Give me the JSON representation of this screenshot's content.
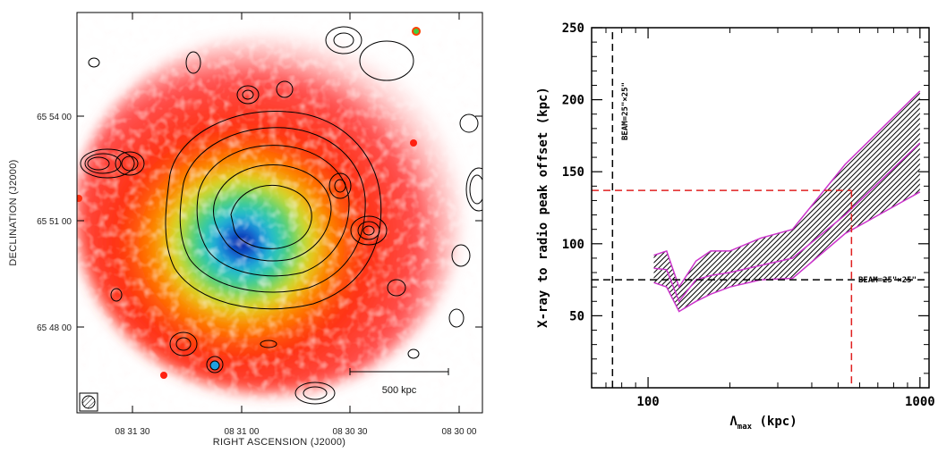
{
  "colors": {
    "contour": "#000000",
    "band_edge": "#cc33cc",
    "ref_black": "#000000",
    "ref_red": "#e02020"
  },
  "map_panel": {
    "xlabel": "RIGHT ASCENSION  (J2000)",
    "ylabel": "DECLINATION  (J2000)",
    "ra_ticks": [
      "08 31 30",
      "08 31 00",
      "08 30 30",
      "08 30 00"
    ],
    "dec_ticks": [
      "65 54 00",
      "65 51 00",
      "65 48 00"
    ],
    "scalebar_label": "500 kpc",
    "beam_icon": "hatched-beam-icon"
  },
  "chart_data": {
    "type": "area",
    "xscale": "log",
    "xlabel": "Λ",
    "xlabel_sub": "max",
    "xlabel_unit": " (kpc)",
    "ylabel": "X-ray to radio peak offset (kpc)",
    "xlim": [
      62,
      1080
    ],
    "ylim": [
      0,
      250
    ],
    "x_ticks": [
      {
        "v": 100,
        "label": "100"
      },
      {
        "v": 1000,
        "label": "1000"
      }
    ],
    "y_ticks": [
      {
        "v": 50,
        "label": "50"
      },
      {
        "v": 100,
        "label": "100"
      },
      {
        "v": 150,
        "label": "150"
      },
      {
        "v": 200,
        "label": "200"
      },
      {
        "v": 250,
        "label": "250"
      }
    ],
    "band": {
      "x": [
        105,
        117,
        130,
        150,
        170,
        200,
        260,
        340,
        530,
        1000
      ],
      "upper": [
        92,
        95,
        70,
        88,
        95,
        95,
        104,
        110,
        155,
        206
      ],
      "mid": [
        83,
        82,
        60,
        75,
        78,
        80,
        85,
        90,
        120,
        170
      ],
      "lower": [
        73,
        70,
        53,
        60,
        65,
        70,
        75,
        76,
        107,
        136
      ]
    },
    "beam_level": 75,
    "beam_label": "BEAM=25\"×25\"",
    "beam_x": 74,
    "beam_x_label": "BEAM=25\"×25\"",
    "match_y": 137,
    "match_x": 560
  }
}
